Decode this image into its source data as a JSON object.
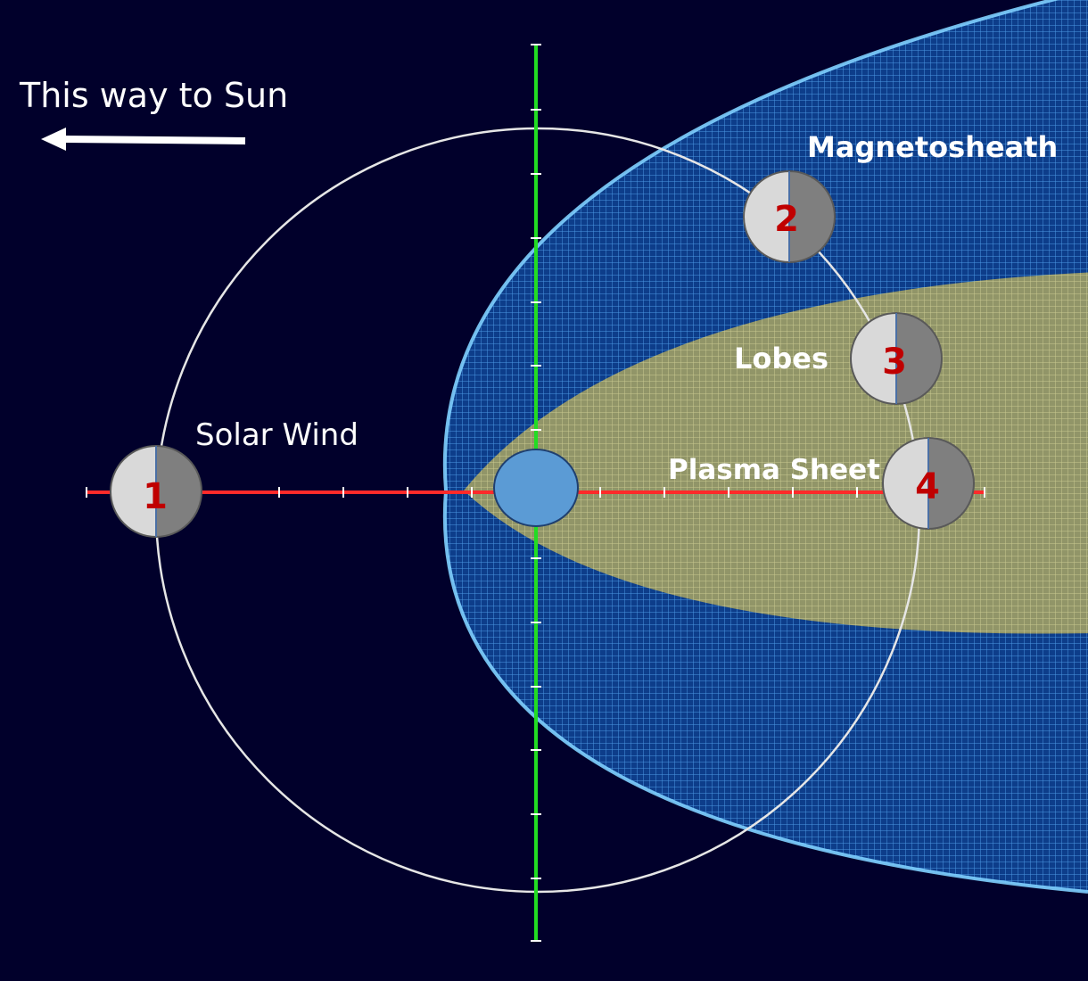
{
  "labels": {
    "sun_direction": "This way to Sun",
    "magnetosheath": "Magnetosheath",
    "lobes": "Lobes",
    "solar_wind": "Solar Wind",
    "plasma_sheet": "Plasma Sheet"
  },
  "moon_phases": [
    {
      "number": "1",
      "region": "Solar Wind"
    },
    {
      "number": "2",
      "region": "Magnetosheath"
    },
    {
      "number": "3",
      "region": "Lobes"
    },
    {
      "number": "4",
      "region": "Plasma Sheet"
    }
  ],
  "colors": {
    "background": "#01002b",
    "magnetosheath_mesh": "#4aa8f0",
    "plasma_sheet_fill": "#b9b46a",
    "earth": "#5b9bd5",
    "x_axis": "#ff2a2a",
    "y_axis": "#22dd22",
    "orbit": "#e6e6e6",
    "moon_light": "#d9d9d9",
    "moon_dark": "#7f7f7f",
    "moon_number": "#c00000"
  }
}
